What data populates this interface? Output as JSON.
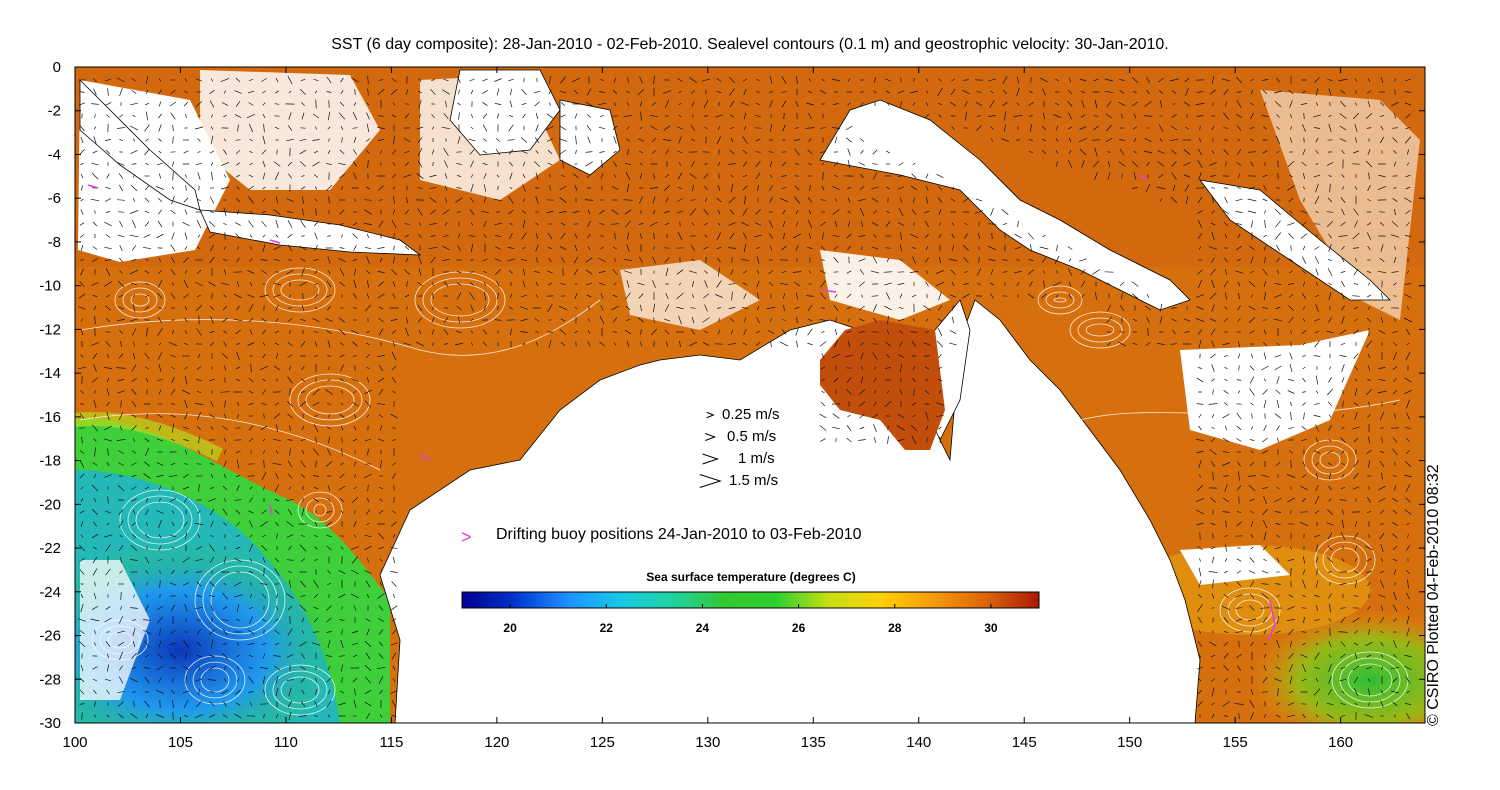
{
  "title": "SST (6 day composite): 28-Jan-2010 - 02-Feb-2010. Sealevel contours (0.1 m) and geostrophic velocity: 30-Jan-2010.",
  "credit": "© CSIRO Plotted 04-Feb-2010 08:32",
  "axes": {
    "x_ticks": [
      "100",
      "105",
      "110",
      "115",
      "120",
      "125",
      "130",
      "135",
      "140",
      "145",
      "150",
      "155",
      "160"
    ],
    "y_ticks": [
      "0",
      "-2",
      "-4",
      "-6",
      "-8",
      "-10",
      "-12",
      "-14",
      "-16",
      "-18",
      "-20",
      "-22",
      "-24",
      "-26",
      "-28",
      "-30"
    ],
    "xlim": [
      100,
      164
    ],
    "ylim": [
      -30,
      0
    ]
  },
  "velocity_legend": [
    {
      "label": "0.25 m/s",
      "speed": 0.25
    },
    {
      "label": "0.5 m/s",
      "speed": 0.5
    },
    {
      "label": "1 m/s",
      "speed": 1
    },
    {
      "label": "1.5 m/s",
      "speed": 1.5
    }
  ],
  "buoy_legend": {
    "label": "Drifting buoy positions 24-Jan-2010 to 03-Feb-2010",
    "marker": ">",
    "color": "#e040e0"
  },
  "colorbar": {
    "title": "Sea surface temperature (degrees C)",
    "range": [
      19,
      31
    ],
    "ticks": [
      "20",
      "22",
      "24",
      "26",
      "28",
      "30"
    ],
    "colors": [
      "#00008f",
      "#0033cc",
      "#1f8fff",
      "#16c8e8",
      "#1fd3a0",
      "#33c933",
      "#2ed02e",
      "#c8e014",
      "#ffd000",
      "#f59a0a",
      "#d9640a",
      "#a81a05"
    ]
  },
  "chart_data": {
    "type": "heatmap",
    "title": "SST (6 day composite): 28-Jan-2010 - 02-Feb-2010. Sealevel contours (0.1 m) and geostrophic velocity: 30-Jan-2010.",
    "xlabel": "",
    "ylabel": "",
    "xlim": [
      100,
      164
    ],
    "ylim": [
      -30,
      0
    ],
    "colorbar_range": [
      19,
      31
    ],
    "colorbar_label": "Sea surface temperature (degrees C)"
  }
}
